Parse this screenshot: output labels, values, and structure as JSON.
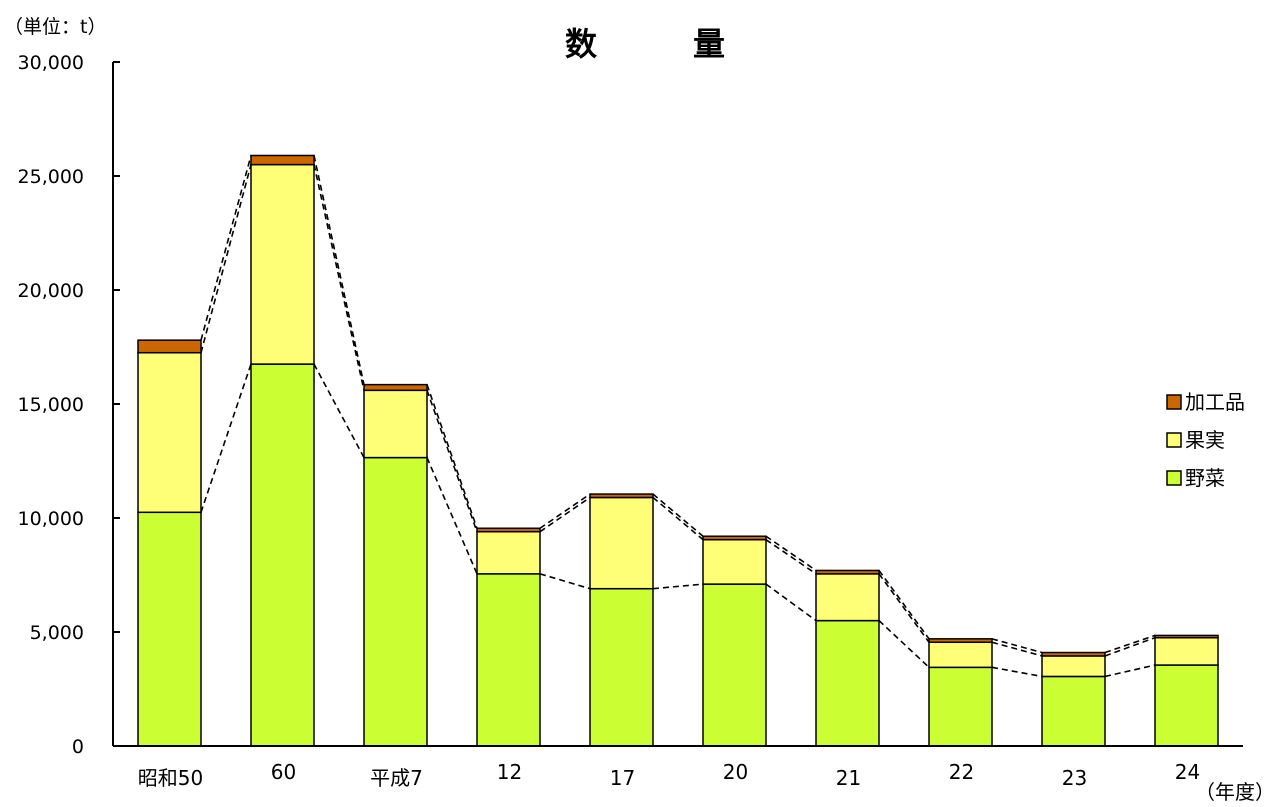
{
  "chart_data": {
    "type": "bar",
    "stacked": true,
    "title": "数　　　量",
    "unit_label": "（単位：t）",
    "xlabel": "（年度）",
    "ylabel": "",
    "ylim": [
      0,
      30000
    ],
    "yticks": [
      0,
      5000,
      10000,
      15000,
      20000,
      25000,
      30000
    ],
    "ytick_labels": [
      "0",
      "5,000",
      "10,000",
      "15,000",
      "20,000",
      "25,000",
      "30,000"
    ],
    "categories": [
      "昭和50",
      "60",
      "平成7",
      "12",
      "17",
      "20",
      "21",
      "22",
      "23",
      "24"
    ],
    "series": [
      {
        "name": "野菜",
        "color": "#ccff33",
        "values": [
          10250,
          16750,
          12650,
          7550,
          6900,
          7100,
          5500,
          3450,
          3050,
          3550
        ]
      },
      {
        "name": "果実",
        "color": "#ffff77",
        "values": [
          7000,
          8750,
          2950,
          1850,
          4000,
          1950,
          2050,
          1100,
          900,
          1200
        ]
      },
      {
        "name": "加工品",
        "color": "#cc6600",
        "values": [
          550,
          400,
          250,
          150,
          150,
          150,
          150,
          150,
          150,
          100
        ]
      }
    ],
    "legend_position": "right",
    "connector_lines": "dashed",
    "grid": false
  }
}
